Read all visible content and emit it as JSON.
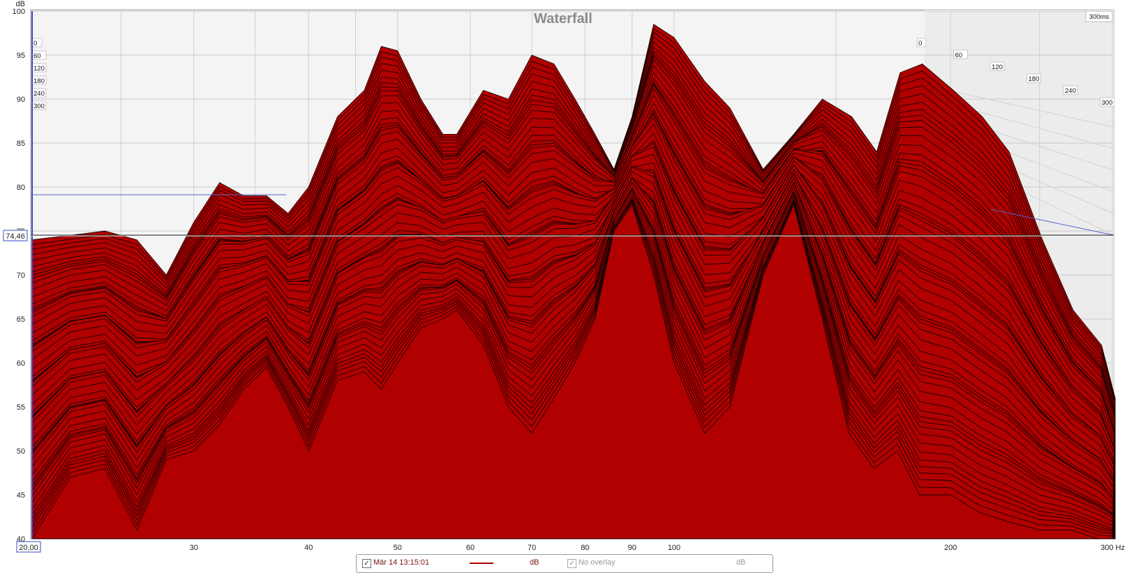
{
  "chart_data": {
    "type": "area",
    "title": "Waterfall",
    "ylabel": "dB",
    "xunit": "Hz",
    "ylim": [
      40,
      100
    ],
    "xlim": [
      20,
      300
    ],
    "x_scale": "log",
    "yticks": [
      "100",
      "95",
      "90",
      "85",
      "80",
      "75",
      "70",
      "65",
      "60",
      "55",
      "50",
      "45",
      "40"
    ],
    "xticks": [
      "30",
      "40",
      "50",
      "60",
      "70",
      "80",
      "90",
      "100",
      "200"
    ],
    "x_min_label": "20,00",
    "x_max_label": "300 Hz",
    "cursor_value": "74,46",
    "depth_max_label": "300ms",
    "depth_labels": [
      "0",
      "60",
      "120",
      "180",
      "240",
      "300"
    ],
    "fill_color": "#b00000",
    "series": [
      {
        "name": "0 ms",
        "x": [
          20,
          22,
          24,
          26,
          28,
          30,
          32,
          34,
          36,
          38,
          40,
          43,
          46,
          48,
          50,
          53,
          56,
          58,
          62,
          66,
          70,
          74,
          78,
          82,
          86,
          90,
          95,
          100,
          108,
          115,
          125,
          135,
          145,
          155,
          165,
          175,
          185,
          200,
          215,
          230,
          250,
          270,
          290,
          300
        ],
        "y": [
          74,
          74.5,
          75,
          74,
          70,
          76,
          80.5,
          79,
          79,
          77,
          80,
          88,
          91,
          96,
          95.5,
          90,
          86,
          86,
          91,
          90,
          95,
          94,
          90,
          86,
          82,
          88,
          98.5,
          97,
          92,
          89,
          82,
          86,
          90,
          88,
          84,
          93,
          94,
          91,
          88,
          84,
          74,
          66,
          62,
          56
        ]
      },
      {
        "name": "300 ms",
        "x": [
          20,
          22,
          24,
          26,
          28,
          30,
          32,
          34,
          36,
          38,
          40,
          43,
          46,
          48,
          50,
          53,
          56,
          58,
          62,
          66,
          70,
          74,
          78,
          82,
          86,
          90,
          95,
          100,
          108,
          115,
          125,
          135,
          145,
          155,
          165,
          175,
          185,
          200,
          215,
          230,
          250,
          270,
          290,
          300
        ],
        "y": [
          40,
          47,
          48,
          41,
          49,
          50,
          53,
          57,
          59.5,
          55,
          50,
          58,
          59,
          57,
          60,
          64,
          65,
          66,
          62,
          55,
          52,
          56,
          60,
          65,
          75,
          78,
          70,
          60,
          52,
          55,
          70,
          78,
          65,
          52,
          48,
          50,
          45,
          45,
          43,
          42,
          41,
          41,
          40,
          40
        ]
      }
    ]
  },
  "legend": {
    "measurement": "Mär 14 13:15:01",
    "unit": "dB",
    "overlay": "No overlay",
    "overlay_unit": "dB",
    "check": "✓",
    "series_color": "#b00000"
  }
}
